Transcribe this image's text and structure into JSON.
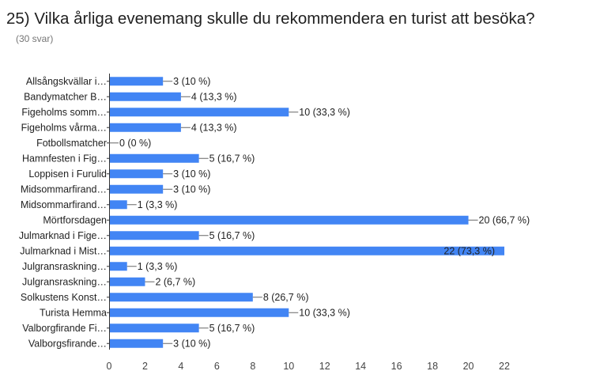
{
  "question": {
    "title": "25) Vilka årliga evenemang skulle du rekommendera en turist att besöka?",
    "response_count": "(30 svar)"
  },
  "chart_data": {
    "type": "bar",
    "orientation": "horizontal",
    "bar_color": "#4285f4",
    "categories": [
      "Allsångskvällar i…",
      "Bandymatcher B…",
      "Figeholms somm…",
      "Figeholms vårma…",
      "Fotbollsmatcher",
      "Hamnfesten i Fig…",
      "Loppisen i Furulid",
      "Midsommarfirand…",
      "Midsommarfirand…",
      "Mörtforsdagen",
      "Julmarknad i Fige…",
      "Julmarknad i Mist…",
      "Julgransraskning…",
      "Julgransraskning…",
      "Solkustens Konst…",
      "Turista Hemma",
      "Valborgfirande Fi…",
      "Valborgsfirande…"
    ],
    "values": [
      3,
      4,
      10,
      4,
      0,
      5,
      3,
      3,
      1,
      20,
      5,
      22,
      1,
      2,
      8,
      10,
      5,
      3
    ],
    "data_labels": [
      "3 (10 %)",
      "4 (13,3 %)",
      "10 (33,3 %)",
      "4 (13,3 %)",
      "0 (0 %)",
      "5 (16,7 %)",
      "3 (10 %)",
      "3 (10 %)",
      "1 (3,3 %)",
      "20 (66,7 %)",
      "5 (16,7 %)",
      "22 (73,3 %)",
      "1 (3,3 %)",
      "2 (6,7 %)",
      "8 (26,7 %)",
      "10 (33,3 %)",
      "5 (16,7 %)",
      "3 (10 %)"
    ],
    "xlim": [
      0,
      22
    ],
    "xticks": [
      0,
      2,
      4,
      6,
      8,
      10,
      12,
      14,
      16,
      18,
      20,
      22
    ],
    "grid": false,
    "legend": "none"
  }
}
